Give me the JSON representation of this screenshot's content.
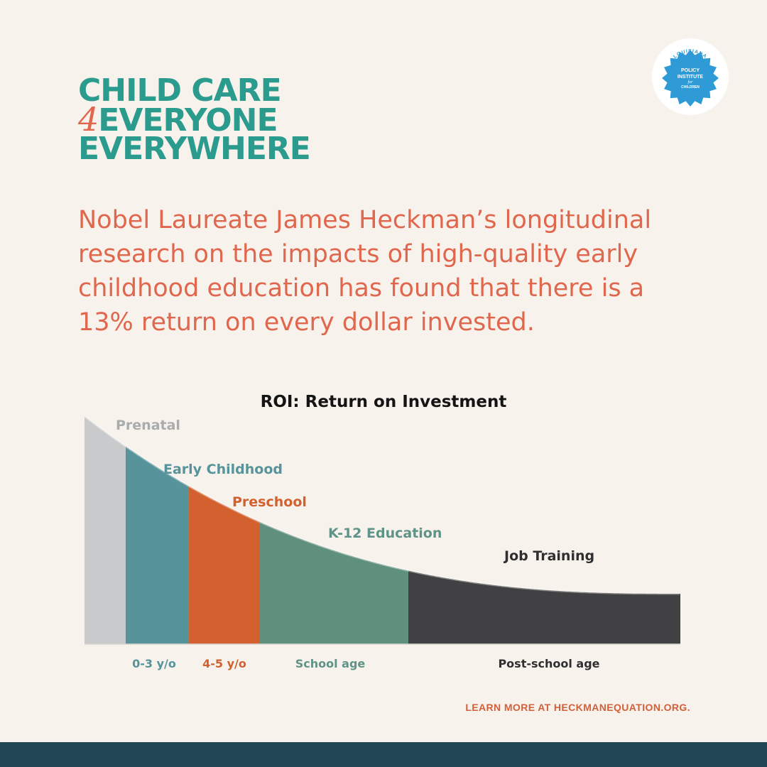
{
  "brand": {
    "line1": "CHILD CARE",
    "four": "4",
    "line2": "EVERYONE",
    "line3": "EVERYWHERE"
  },
  "logo": {
    "top_text": "LOUISIANA",
    "line1": "POLICY",
    "line2": "INSTITUTE",
    "line3": "for",
    "bottom_text": "CHILDREN",
    "color": "#2e9bd6"
  },
  "headline": "Nobel Laureate James Heckman’s longitudinal research on the impacts of high-quality early childhood education has found that there is a 13% return on every dollar invested.",
  "chart_data": {
    "type": "area",
    "title": "ROI: Return on Investment",
    "xlabel": "",
    "ylabel": "",
    "x_axis_visible": false,
    "y_axis_visible": false,
    "grid": false,
    "segments": [
      {
        "name": "Prenatal",
        "age_label": "",
        "color": "#c8cacc",
        "label_color": "#a9acaf"
      },
      {
        "name": "Early Childhood",
        "age_label": "0-3 y/o",
        "color": "#57939b",
        "label_color": "#57939b"
      },
      {
        "name": "Preschool",
        "age_label": "4-5 y/o",
        "color": "#d2612f",
        "label_color": "#d2612f"
      },
      {
        "name": "K-12 Education",
        "age_label": "School age",
        "color": "#5f8f7d",
        "label_color": "#5f9388"
      },
      {
        "name": "Job Training",
        "age_label": "Post-school age",
        "color": "#414143",
        "label_color": "#2f2f31"
      }
    ]
  },
  "footer": {
    "link_text": "LEARN MORE AT HECKMANEQUATION.ORG.",
    "bar_color": "#234654"
  }
}
